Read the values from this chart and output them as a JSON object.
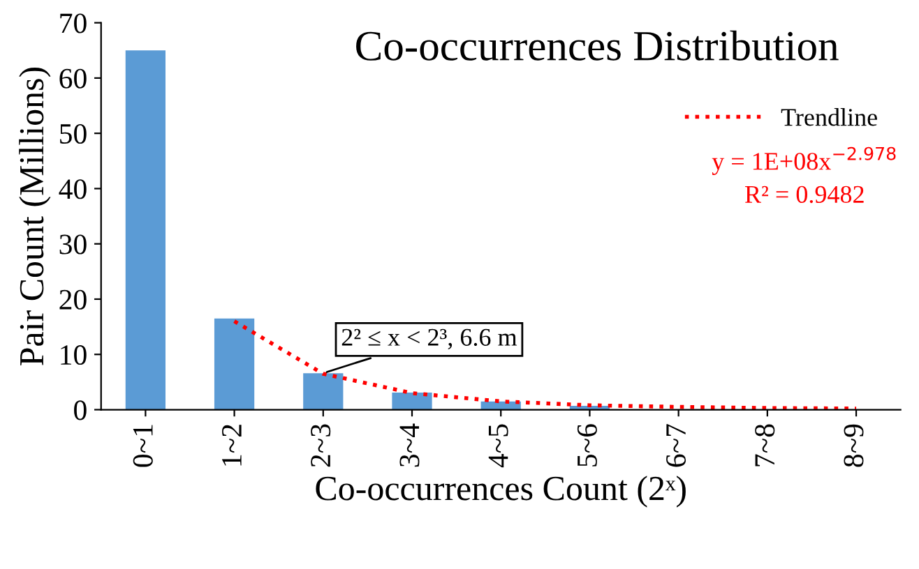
{
  "chart_data": {
    "type": "bar",
    "title": "Co-occurrences Distribution",
    "xlabel": "Co-occurrences Count (2ˣ)",
    "ylabel": "Pair Count (Millions)",
    "categories": [
      "0~1",
      "1~2",
      "2~3",
      "3~4",
      "4~5",
      "5~6",
      "6~7",
      "7~8",
      "8~9"
    ],
    "series": [
      {
        "color": "#5b9bd5",
        "values": [
          65,
          16.5,
          6.6,
          3.1,
          1.5,
          0.7,
          null,
          null,
          null
        ]
      },
      {
        "type": "line",
        "name": "Trendline",
        "color": "#ff0000",
        "line_style": "dotted",
        "values": [
          null,
          16,
          6.5,
          3,
          1.5,
          0.8,
          0.5,
          0.3,
          0.2
        ]
      }
    ],
    "ylim": [
      0,
      70
    ],
    "yticks": [
      0,
      10,
      20,
      30,
      40,
      50,
      60,
      70
    ],
    "grid": false,
    "legend": "right",
    "annotations": [
      {
        "text": "2² ≤ x < 2³, 6.6 m",
        "x": "2~3",
        "y": 6.6
      },
      "y = 1E+08x$^{−2.978}$",
      "R² = 0.9482"
    ]
  }
}
